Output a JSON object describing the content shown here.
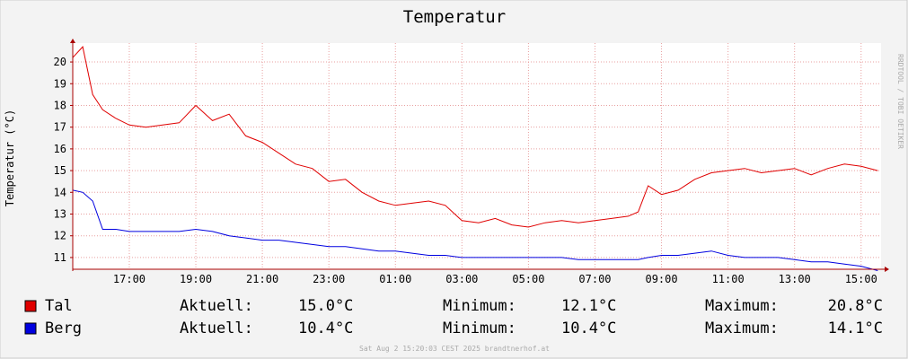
{
  "chart_data": {
    "type": "line",
    "title": "Temperatur",
    "y_label": "Temperatur (°C)",
    "side_label": "RRDTOOL / TOBI OETIKER",
    "footer": "Sat Aug  2 15:20:03 CEST 2025 brandtnerhof.at",
    "x": [
      15.3,
      15.6,
      15.9,
      16.2,
      16.6,
      17,
      17.5,
      18,
      18.5,
      19,
      19.5,
      20,
      20.5,
      21,
      21.5,
      22,
      22.5,
      23,
      23.5,
      24,
      24.5,
      25,
      25.5,
      26,
      26.5,
      27,
      27.5,
      28,
      28.5,
      29,
      29.5,
      30,
      30.5,
      31,
      31.5,
      32,
      32.3,
      32.6,
      33,
      33.5,
      34,
      34.5,
      35,
      35.5,
      36,
      36.5,
      37,
      37.5,
      38,
      38.5,
      39,
      39.5
    ],
    "series": [
      {
        "name": "Tal",
        "color": "#e00000",
        "values": [
          20.2,
          20.7,
          18.5,
          17.8,
          17.4,
          17.1,
          17.0,
          17.1,
          17.2,
          18.0,
          17.3,
          17.6,
          16.6,
          16.3,
          15.8,
          15.3,
          15.1,
          14.5,
          14.6,
          14.0,
          13.6,
          13.4,
          13.5,
          13.6,
          13.4,
          12.7,
          12.6,
          12.8,
          12.5,
          12.4,
          12.6,
          12.7,
          12.6,
          12.7,
          12.8,
          12.9,
          13.1,
          14.3,
          13.9,
          14.1,
          14.6,
          14.9,
          15.0,
          15.1,
          14.9,
          15.0,
          15.1,
          14.8,
          15.1,
          15.3,
          15.2,
          15.0
        ]
      },
      {
        "name": "Berg",
        "color": "#0000e0",
        "values": [
          14.1,
          14.0,
          13.6,
          12.3,
          12.3,
          12.2,
          12.2,
          12.2,
          12.2,
          12.3,
          12.2,
          12.0,
          11.9,
          11.8,
          11.8,
          11.7,
          11.6,
          11.5,
          11.5,
          11.4,
          11.3,
          11.3,
          11.2,
          11.1,
          11.1,
          11.0,
          11.0,
          11.0,
          11.0,
          11.0,
          11.0,
          11.0,
          10.9,
          10.9,
          10.9,
          10.9,
          10.9,
          11.0,
          11.1,
          11.1,
          11.2,
          11.3,
          11.1,
          11.0,
          11.0,
          11.0,
          10.9,
          10.8,
          10.8,
          10.7,
          10.6,
          10.4
        ]
      }
    ],
    "legend_rows": [
      {
        "current_label": "Aktuell:",
        "current": "15.0°C",
        "min_label": "Minimum:",
        "min": "12.1°C",
        "max_label": "Maximum:",
        "max": "20.8°C"
      },
      {
        "current_label": "Aktuell:",
        "current": "10.4°C",
        "min_label": "Minimum:",
        "min": "10.4°C",
        "max_label": "Maximum:",
        "max": "14.1°C"
      }
    ],
    "xlim": [
      15.3,
      39.6
    ],
    "xticks": [
      {
        "value": 17,
        "label": "17:00"
      },
      {
        "value": 19,
        "label": "19:00"
      },
      {
        "value": 21,
        "label": "21:00"
      },
      {
        "value": 23,
        "label": "23:00"
      },
      {
        "value": 25,
        "label": "01:00"
      },
      {
        "value": 27,
        "label": "03:00"
      },
      {
        "value": 29,
        "label": "05:00"
      },
      {
        "value": 31,
        "label": "07:00"
      },
      {
        "value": 33,
        "label": "09:00"
      },
      {
        "value": 35,
        "label": "11:00"
      },
      {
        "value": 37,
        "label": "13:00"
      },
      {
        "value": 39,
        "label": "15:00"
      }
    ],
    "ylim": [
      10.46,
      20.87
    ],
    "yticks": [
      11,
      12,
      13,
      14,
      15,
      16,
      17,
      18,
      19,
      20
    ],
    "grid": true
  }
}
